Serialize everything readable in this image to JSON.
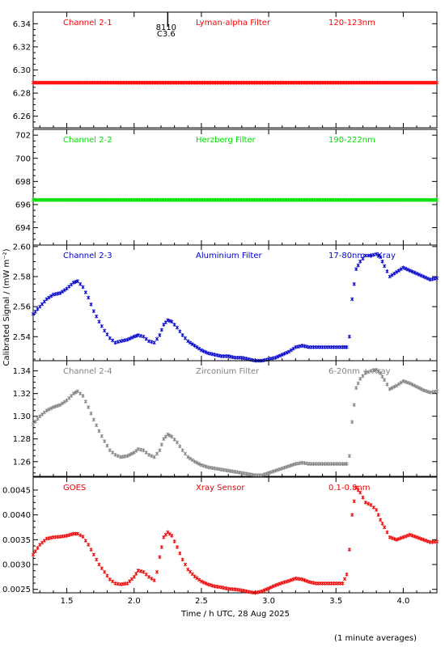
{
  "figure": {
    "ylabel": "Calibrated Signal / (mW m⁻²)",
    "xlabel": "Time / h UTC, 28 Aug 2025",
    "footnote": "(1 minute averages)",
    "flare_marker": {
      "x": 2.25,
      "class_label": "C3.6",
      "id_label": "8110"
    }
  },
  "chart_data": [
    {
      "type": "scatter",
      "channel": "Channel 2-1",
      "filter": "Lyman-alpha Filter",
      "band": "120-123nm",
      "color": "#ff0000",
      "xlim": [
        1.25,
        4.25
      ],
      "ylim": [
        6.25,
        6.35
      ],
      "yticks": [
        6.26,
        6.28,
        6.3,
        6.32,
        6.34
      ],
      "ytick_labels": [
        "6.26",
        "6.28",
        "6.30",
        "6.32",
        "6.34"
      ],
      "x": [
        1.25,
        4.25
      ],
      "y": [
        6.289,
        6.289
      ]
    },
    {
      "type": "scatter",
      "channel": "Channel 2-2",
      "filter": "Herzberg Filter",
      "band": "190-222nm",
      "color": "#00dd00",
      "xlim": [
        1.25,
        4.25
      ],
      "ylim": [
        692.5,
        702.5
      ],
      "yticks": [
        694,
        696,
        698,
        700,
        702
      ],
      "ytick_labels": [
        "694",
        "696",
        "698",
        "700",
        "702"
      ],
      "x": [
        1.25,
        4.25
      ],
      "y": [
        696.4,
        696.4
      ]
    },
    {
      "type": "scatter",
      "channel": "Channel 2-3",
      "filter": "Aluminium Filter",
      "band": "17-80nm + Xray",
      "color": "#0000cc",
      "xlim": [
        1.25,
        4.25
      ],
      "ylim": [
        2.524,
        2.601
      ],
      "yticks": [
        2.54,
        2.56,
        2.58,
        2.6
      ],
      "ytick_labels": [
        "2.54",
        "2.56",
        "2.58",
        "2.60"
      ],
      "x": [
        1.25,
        1.3,
        1.35,
        1.4,
        1.45,
        1.5,
        1.55,
        1.58,
        1.62,
        1.66,
        1.7,
        1.74,
        1.78,
        1.82,
        1.86,
        1.9,
        1.95,
        2.0,
        2.03,
        2.07,
        2.11,
        2.15,
        2.19,
        2.22,
        2.25,
        2.28,
        2.32,
        2.36,
        2.4,
        2.45,
        2.5,
        2.55,
        2.6,
        2.65,
        2.7,
        2.75,
        2.8,
        2.85,
        2.9,
        2.95,
        3.0,
        3.05,
        3.1,
        3.15,
        3.2,
        3.25,
        3.3,
        3.35,
        3.4,
        3.45,
        3.5,
        3.55,
        3.58,
        3.6,
        3.62,
        3.65,
        3.68,
        3.72,
        3.76,
        3.8,
        3.83,
        3.86,
        3.9,
        3.95,
        4.0,
        4.05,
        4.1,
        4.15,
        4.2,
        4.25
      ],
      "y": [
        2.555,
        2.56,
        2.565,
        2.568,
        2.569,
        2.572,
        2.576,
        2.577,
        2.573,
        2.566,
        2.557,
        2.55,
        2.544,
        2.539,
        2.536,
        2.537,
        2.538,
        2.54,
        2.541,
        2.54,
        2.537,
        2.536,
        2.541,
        2.548,
        2.551,
        2.55,
        2.546,
        2.541,
        2.537,
        2.534,
        2.531,
        2.529,
        2.528,
        2.527,
        2.527,
        2.526,
        2.526,
        2.525,
        2.524,
        2.524,
        2.525,
        2.526,
        2.528,
        2.53,
        2.533,
        2.534,
        2.533,
        2.533,
        2.533,
        2.533,
        2.533,
        2.533,
        2.533,
        2.54,
        2.565,
        2.585,
        2.59,
        2.594,
        2.594,
        2.595,
        2.593,
        2.587,
        2.58,
        2.583,
        2.586,
        2.584,
        2.582,
        2.58,
        2.578,
        2.579
      ]
    },
    {
      "type": "scatter",
      "channel": "Channel 2-4",
      "filter": "Zirconium Filter",
      "band": "6-20nm + Xray",
      "color": "#808080",
      "xlim": [
        1.25,
        4.25
      ],
      "ylim": [
        1.247,
        1.349
      ],
      "yticks": [
        1.26,
        1.28,
        1.3,
        1.32,
        1.34
      ],
      "ytick_labels": [
        "1.26",
        "1.28",
        "1.30",
        "1.32",
        "1.34"
      ],
      "x": [
        1.25,
        1.3,
        1.35,
        1.4,
        1.45,
        1.5,
        1.55,
        1.58,
        1.62,
        1.66,
        1.7,
        1.74,
        1.78,
        1.82,
        1.86,
        1.9,
        1.95,
        2.0,
        2.03,
        2.07,
        2.11,
        2.15,
        2.19,
        2.22,
        2.25,
        2.28,
        2.32,
        2.36,
        2.4,
        2.45,
        2.5,
        2.55,
        2.6,
        2.65,
        2.7,
        2.75,
        2.8,
        2.85,
        2.9,
        2.95,
        3.0,
        3.05,
        3.1,
        3.15,
        3.2,
        3.25,
        3.3,
        3.35,
        3.4,
        3.45,
        3.5,
        3.55,
        3.58,
        3.6,
        3.62,
        3.65,
        3.68,
        3.72,
        3.76,
        3.8,
        3.83,
        3.86,
        3.9,
        3.95,
        4.0,
        4.05,
        4.1,
        4.15,
        4.2,
        4.25
      ],
      "y": [
        1.293,
        1.3,
        1.305,
        1.308,
        1.31,
        1.314,
        1.32,
        1.322,
        1.318,
        1.308,
        1.297,
        1.287,
        1.278,
        1.27,
        1.266,
        1.264,
        1.265,
        1.268,
        1.271,
        1.27,
        1.266,
        1.264,
        1.27,
        1.28,
        1.284,
        1.282,
        1.277,
        1.27,
        1.264,
        1.26,
        1.257,
        1.255,
        1.254,
        1.253,
        1.252,
        1.251,
        1.25,
        1.249,
        1.248,
        1.248,
        1.25,
        1.252,
        1.254,
        1.256,
        1.258,
        1.259,
        1.258,
        1.258,
        1.258,
        1.258,
        1.258,
        1.258,
        1.258,
        1.265,
        1.295,
        1.325,
        1.333,
        1.338,
        1.34,
        1.341,
        1.338,
        1.332,
        1.324,
        1.327,
        1.331,
        1.329,
        1.326,
        1.323,
        1.321,
        1.322
      ]
    },
    {
      "type": "scatter",
      "channel": "GOES",
      "filter": "Xray Sensor",
      "band": "0.1-0.8nm",
      "color": "#ee0000",
      "xlim": [
        1.25,
        4.25
      ],
      "ylim": [
        0.00243,
        0.00476
      ],
      "yticks": [
        0.0025,
        0.003,
        0.0035,
        0.004,
        0.0045
      ],
      "ytick_labels": [
        "0.0025",
        "0.0030",
        "0.0035",
        "0.0040",
        "0.0045"
      ],
      "x": [
        1.25,
        1.3,
        1.35,
        1.4,
        1.45,
        1.5,
        1.55,
        1.58,
        1.62,
        1.66,
        1.7,
        1.74,
        1.78,
        1.82,
        1.86,
        1.9,
        1.95,
        2.0,
        2.03,
        2.07,
        2.11,
        2.15,
        2.17,
        2.19,
        2.22,
        2.25,
        2.28,
        2.32,
        2.36,
        2.4,
        2.45,
        2.5,
        2.55,
        2.6,
        2.65,
        2.7,
        2.75,
        2.8,
        2.85,
        2.9,
        2.95,
        3.0,
        3.05,
        3.1,
        3.15,
        3.2,
        3.25,
        3.3,
        3.35,
        3.4,
        3.45,
        3.5,
        3.55,
        3.58,
        3.6,
        3.62,
        3.65,
        3.68,
        3.72,
        3.76,
        3.8,
        3.83,
        3.86,
        3.9,
        3.95,
        4.0,
        4.05,
        4.1,
        4.15,
        4.2,
        4.25
      ],
      "y": [
        0.0032,
        0.0034,
        0.00352,
        0.00355,
        0.00356,
        0.00358,
        0.00362,
        0.00362,
        0.00356,
        0.0034,
        0.0032,
        0.003,
        0.00285,
        0.0027,
        0.00262,
        0.0026,
        0.00262,
        0.00275,
        0.00288,
        0.00285,
        0.00275,
        0.00268,
        0.00285,
        0.00315,
        0.00355,
        0.00365,
        0.00358,
        0.00335,
        0.0031,
        0.0029,
        0.00276,
        0.00266,
        0.0026,
        0.00256,
        0.00254,
        0.00251,
        0.0025,
        0.00248,
        0.00245,
        0.00243,
        0.00246,
        0.00252,
        0.00258,
        0.00263,
        0.00267,
        0.00272,
        0.0027,
        0.00265,
        0.00262,
        0.00262,
        0.00262,
        0.00262,
        0.00262,
        0.0028,
        0.0033,
        0.004,
        0.00455,
        0.00445,
        0.00425,
        0.0042,
        0.0041,
        0.0039,
        0.00375,
        0.00355,
        0.0035,
        0.00355,
        0.0036,
        0.00355,
        0.0035,
        0.00345,
        0.00346
      ]
    }
  ]
}
